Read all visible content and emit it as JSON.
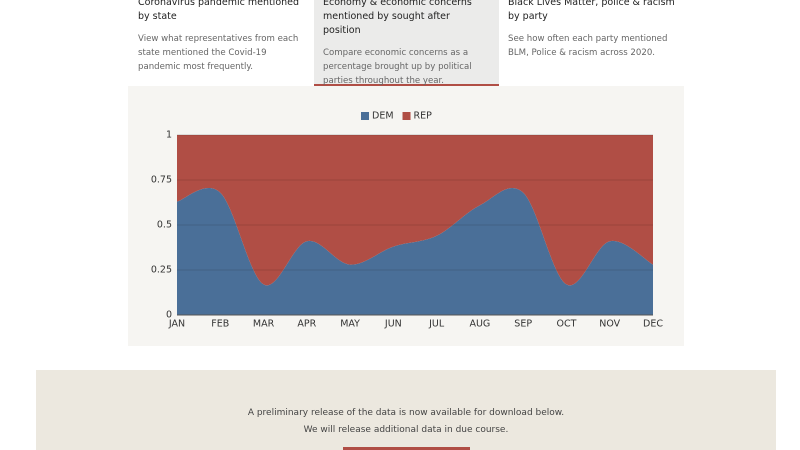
{
  "tabs": [
    {
      "title": "Coronavirus pandemic mentioned by state",
      "description": "View what representatives from each state mentioned the Covid-19 pandemic most frequently."
    },
    {
      "title": "Economy & economic concerns mentioned by sought after position",
      "description": "Compare economic concerns as a percentage brought up by political parties throughout the year."
    },
    {
      "title": "Black Lives Matter, police & racism by party",
      "description": "See how often each party mentioned BLM, Police & racism across 2020."
    }
  ],
  "chart_data": {
    "type": "stacked-area",
    "categories": [
      "JAN",
      "FEB",
      "MAR",
      "APR",
      "MAY",
      "JUN",
      "JUL",
      "AUG",
      "SEP",
      "OCT",
      "NOV",
      "DEC"
    ],
    "series": [
      {
        "name": "DEM",
        "color": "#4a6f98",
        "values": [
          0.63,
          0.68,
          0.17,
          0.41,
          0.28,
          0.38,
          0.44,
          0.61,
          0.68,
          0.17,
          0.41,
          0.28
        ]
      },
      {
        "name": "REP",
        "color": "#b04e45",
        "values": [
          0.37,
          0.32,
          0.83,
          0.59,
          0.72,
          0.62,
          0.56,
          0.39,
          0.32,
          0.83,
          0.59,
          0.72
        ]
      }
    ],
    "ylim": [
      0,
      1
    ],
    "yticks": [
      0,
      0.25,
      0.5,
      0.75,
      1
    ],
    "grid": true,
    "legend": "top"
  },
  "footer": {
    "lines": [
      "A preliminary release of the data is now available for download below.",
      "We will release additional data in due course."
    ]
  }
}
